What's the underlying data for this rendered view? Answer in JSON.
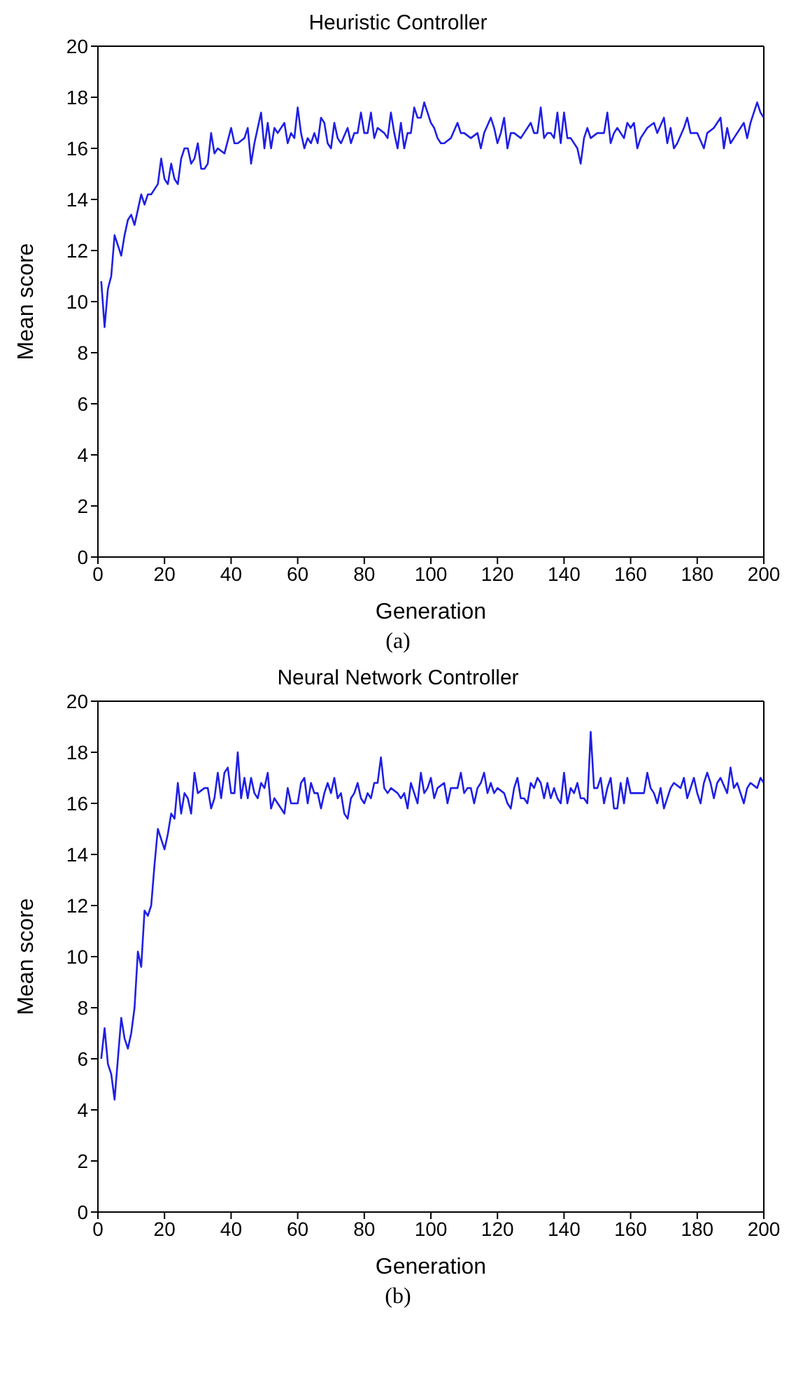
{
  "chart_data": [
    {
      "type": "line",
      "title": "Heuristic Controller",
      "xlabel": "Generation",
      "ylabel": "Mean score",
      "annotations": [
        "(a)"
      ],
      "xlim": [
        0,
        200
      ],
      "xticks": [
        0,
        20,
        40,
        60,
        80,
        100,
        120,
        140,
        160,
        180,
        200
      ],
      "ylim": [
        0,
        20
      ],
      "yticks": [
        0,
        2,
        4,
        6,
        8,
        10,
        12,
        14,
        16,
        18,
        20
      ],
      "grid": false,
      "legend": false,
      "x": [
        1,
        2,
        3,
        4,
        5,
        6,
        7,
        8,
        9,
        10,
        11,
        12,
        13,
        14,
        15,
        16,
        17,
        18,
        19,
        20,
        21,
        22,
        23,
        24,
        25,
        26,
        27,
        28,
        29,
        30,
        31,
        32,
        33,
        34,
        35,
        36,
        38,
        40,
        41,
        42,
        44,
        45,
        46,
        47,
        49,
        50,
        51,
        52,
        53,
        54,
        56,
        57,
        58,
        59,
        60,
        61,
        62,
        63,
        64,
        65,
        66,
        67,
        68,
        69,
        70,
        71,
        72,
        73,
        75,
        76,
        77,
        78,
        79,
        80,
        81,
        82,
        83,
        84,
        86,
        87,
        88,
        89,
        90,
        91,
        92,
        93,
        94,
        95,
        96,
        97,
        98,
        99,
        100,
        101,
        102,
        103,
        104,
        106,
        108,
        109,
        110,
        112,
        114,
        115,
        116,
        118,
        119,
        120,
        121,
        122,
        123,
        124,
        125,
        127,
        128,
        130,
        131,
        132,
        133,
        134,
        135,
        136,
        137,
        138,
        139,
        140,
        141,
        142,
        144,
        145,
        146,
        147,
        148,
        150,
        152,
        153,
        154,
        155,
        156,
        158,
        159,
        160,
        161,
        162,
        163,
        165,
        167,
        168,
        170,
        171,
        172,
        173,
        174,
        176,
        177,
        178,
        180,
        182,
        183,
        185,
        187,
        188,
        189,
        190,
        191,
        193,
        194,
        195,
        196,
        197,
        198,
        199,
        200
      ],
      "series": [
        {
          "color": "#1f1fe6",
          "values": [
            10.8,
            9.0,
            10.5,
            11,
            12.6,
            12.2,
            11.8,
            12.6,
            13.2,
            13.4,
            13.0,
            13.6,
            14.2,
            13.8,
            14.2,
            14.2,
            14.4,
            14.6,
            15.6,
            14.8,
            14.6,
            15.4,
            14.8,
            14.6,
            15.6,
            16.0,
            16.0,
            15.4,
            15.6,
            16.2,
            15.2,
            15.2,
            15.4,
            16.6,
            15.8,
            16.0,
            15.8,
            16.8,
            16.2,
            16.2,
            16.4,
            16.8,
            15.4,
            16.2,
            17.4,
            16.0,
            17.0,
            16.0,
            16.8,
            16.6,
            17.0,
            16.2,
            16.6,
            16.4,
            17.6,
            16.6,
            16.0,
            16.4,
            16.2,
            16.6,
            16.2,
            17.2,
            17.0,
            16.2,
            16.0,
            17.0,
            16.4,
            16.2,
            16.8,
            16.2,
            16.6,
            16.6,
            17.4,
            16.6,
            16.6,
            17.4,
            16.4,
            16.8,
            16.6,
            16.4,
            17.4,
            16.6,
            16.0,
            17.0,
            16.0,
            16.6,
            16.6,
            17.6,
            17.2,
            17.2,
            17.8,
            17.4,
            17.0,
            16.8,
            16.4,
            16.2,
            16.2,
            16.4,
            17.0,
            16.6,
            16.6,
            16.4,
            16.6,
            16.0,
            16.6,
            17.2,
            16.8,
            16.2,
            16.6,
            17.2,
            16.0,
            16.6,
            16.6,
            16.4,
            16.6,
            17.0,
            16.6,
            16.6,
            17.6,
            16.4,
            16.6,
            16.6,
            16.4,
            17.4,
            16.2,
            17.4,
            16.4,
            16.4,
            16.0,
            15.4,
            16.4,
            16.8,
            16.4,
            16.6,
            16.6,
            17.4,
            16.2,
            16.6,
            16.8,
            16.4,
            17.0,
            16.8,
            17.0,
            16.0,
            16.4,
            16.8,
            17.0,
            16.6,
            17.2,
            16.2,
            16.8,
            16.0,
            16.2,
            16.8,
            17.2,
            16.6,
            16.6,
            16.0,
            16.6,
            16.8,
            17.2,
            16.0,
            16.8,
            16.2,
            16.4,
            16.8,
            17.0,
            16.4,
            17.0,
            17.4,
            17.8,
            17.4,
            17.2
          ]
        }
      ]
    },
    {
      "type": "line",
      "title": "Neural Network Controller",
      "xlabel": "Generation",
      "ylabel": "Mean score",
      "annotations": [
        "(b)"
      ],
      "xlim": [
        0,
        200
      ],
      "xticks": [
        0,
        20,
        40,
        60,
        80,
        100,
        120,
        140,
        160,
        180,
        200
      ],
      "ylim": [
        0,
        20
      ],
      "yticks": [
        0,
        2,
        4,
        6,
        8,
        10,
        12,
        14,
        16,
        18,
        20
      ],
      "grid": false,
      "legend": false,
      "x": [
        1,
        2,
        3,
        4,
        5,
        6,
        7,
        8,
        9,
        10,
        11,
        12,
        13,
        14,
        15,
        16,
        17,
        18,
        19,
        20,
        21,
        22,
        23,
        24,
        25,
        26,
        27,
        28,
        29,
        30,
        32,
        33,
        34,
        35,
        36,
        37,
        38,
        39,
        40,
        41,
        42,
        43,
        44,
        45,
        46,
        47,
        48,
        49,
        50,
        51,
        52,
        53,
        55,
        56,
        57,
        58,
        60,
        61,
        62,
        63,
        64,
        65,
        66,
        67,
        68,
        69,
        70,
        71,
        72,
        73,
        74,
        75,
        76,
        77,
        78,
        79,
        80,
        81,
        82,
        83,
        84,
        85,
        86,
        87,
        88,
        90,
        91,
        92,
        93,
        94,
        95,
        96,
        97,
        98,
        99,
        100,
        101,
        102,
        104,
        105,
        106,
        108,
        109,
        110,
        111,
        112,
        113,
        114,
        115,
        116,
        117,
        118,
        119,
        120,
        122,
        123,
        124,
        125,
        126,
        127,
        128,
        129,
        130,
        131,
        132,
        133,
        134,
        135,
        136,
        137,
        138,
        139,
        140,
        141,
        142,
        143,
        144,
        145,
        146,
        147,
        148,
        149,
        150,
        151,
        152,
        153,
        154,
        155,
        156,
        157,
        158,
        159,
        160,
        162,
        164,
        165,
        166,
        167,
        168,
        169,
        170,
        171,
        172,
        173,
        175,
        176,
        177,
        178,
        179,
        180,
        181,
        182,
        183,
        184,
        185,
        186,
        187,
        189,
        190,
        191,
        192,
        193,
        194,
        195,
        196,
        198,
        199,
        200
      ],
      "series": [
        {
          "color": "#1f1fe6",
          "values": [
            6.0,
            7.2,
            5.8,
            5.4,
            4.4,
            6.0,
            7.6,
            6.8,
            6.4,
            7.0,
            8.0,
            10.2,
            9.6,
            11.8,
            11.6,
            12.0,
            13.6,
            15.0,
            14.6,
            14.2,
            14.8,
            15.6,
            15.4,
            16.8,
            15.6,
            16.4,
            16.2,
            15.6,
            17.2,
            16.4,
            16.6,
            16.6,
            15.8,
            16.2,
            17.2,
            16.2,
            17.2,
            17.4,
            16.4,
            16.4,
            18.0,
            16.2,
            17.0,
            16.2,
            17.0,
            16.4,
            16.2,
            16.8,
            16.6,
            17.2,
            15.8,
            16.2,
            15.8,
            15.6,
            16.6,
            16.0,
            16.0,
            16.8,
            17.0,
            16.0,
            16.8,
            16.4,
            16.4,
            15.8,
            16.4,
            16.8,
            16.4,
            17.0,
            16.2,
            16.4,
            15.6,
            15.4,
            16.2,
            16.4,
            16.8,
            16.2,
            16.0,
            16.4,
            16.2,
            16.8,
            16.8,
            17.8,
            16.6,
            16.4,
            16.6,
            16.4,
            16.2,
            16.4,
            15.8,
            16.8,
            16.4,
            16.0,
            17.2,
            16.4,
            16.6,
            17.0,
            16.2,
            16.6,
            16.8,
            16.0,
            16.6,
            16.6,
            17.2,
            16.4,
            16.6,
            16.6,
            16.0,
            16.6,
            16.8,
            17.2,
            16.4,
            16.8,
            16.4,
            16.6,
            16.4,
            16.0,
            15.8,
            16.6,
            17.0,
            16.2,
            16.2,
            16.0,
            16.8,
            16.6,
            17.0,
            16.8,
            16.2,
            16.8,
            16.2,
            16.6,
            16.2,
            16.0,
            17.2,
            16.0,
            16.6,
            16.4,
            16.8,
            16.2,
            16.2,
            16.0,
            18.8,
            16.6,
            16.6,
            17.0,
            16.0,
            16.6,
            17.0,
            15.8,
            15.8,
            16.8,
            16.0,
            17.0,
            16.4,
            16.4,
            16.4,
            17.2,
            16.6,
            16.4,
            16.0,
            16.6,
            15.8,
            16.2,
            16.6,
            16.8,
            16.6,
            17.0,
            16.2,
            16.6,
            17.0,
            16.4,
            16.0,
            16.8,
            17.2,
            16.8,
            16.2,
            16.8,
            17.0,
            16.4,
            17.4,
            16.6,
            16.8,
            16.4,
            16.0,
            16.6,
            16.8,
            16.6,
            17.0,
            16.8
          ]
        }
      ]
    }
  ]
}
